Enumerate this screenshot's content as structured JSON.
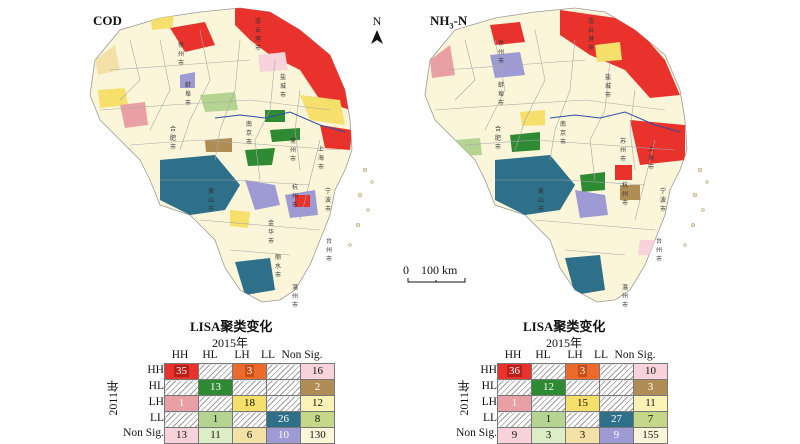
{
  "maps": [
    {
      "label": "COD",
      "cities": [
        "连云港市",
        "徐州市",
        "盐城市",
        "蚌埠市",
        "合肥市",
        "南京市",
        "常州市",
        "上海市",
        "黄山市",
        "杭州市",
        "金华市",
        "宁波市",
        "温州市",
        "台州市",
        "丽水市"
      ]
    },
    {
      "label": "NH3-N",
      "label_main": "NH",
      "label_sub": "3",
      "label_tail": "-N",
      "cities": [
        "连云港市",
        "徐州市",
        "盐城市",
        "蚌埠市",
        "合肥市",
        "南京市",
        "苏州市",
        "上海市",
        "黄山市",
        "杭州市",
        "宁波市",
        "温州市",
        "台州市"
      ]
    }
  ],
  "north_label": "N",
  "scale_label": "0    100 km",
  "legend_colors": {
    "HH": "#e8322b",
    "HL": "#2f8a34",
    "LH": "#f6df6a",
    "LL": "#2e6f8a",
    "NonSig": "#fbf6da",
    "HH_to_Non": "#f9d3dc",
    "HL_to_Non": "#b08d55",
    "LH_to_Non": "#fbf6da",
    "LL_to_Non": "#9e9ad3",
    "Non_to_HH": "#e8a0a4",
    "Non_to_HL": "#b5d391",
    "Non_to_LH": "#f3e1a8",
    "Non_to_LL": "#9e9ad3",
    "Non_to_Non": "#fbf6da"
  },
  "transition_tables": [
    {
      "title": "LISA聚类变化",
      "col_title": "2015年",
      "row_title": "2011年",
      "columns": [
        "HH",
        "HL",
        "LH",
        "LL",
        "Non Sig."
      ],
      "rows": [
        "HH",
        "HL",
        "LH",
        "LL",
        "Non Sig."
      ],
      "cells": [
        [
          "35",
          "",
          "3",
          "",
          "16"
        ],
        [
          "",
          "13",
          "",
          "",
          "2"
        ],
        [
          "1",
          "",
          "18",
          "",
          "12"
        ],
        [
          "",
          "1",
          "",
          "26",
          "8"
        ],
        [
          "13",
          "11",
          "6",
          "10",
          "130"
        ]
      ]
    },
    {
      "title": "LISA聚类变化",
      "col_title": "2015年",
      "row_title": "2011年",
      "columns": [
        "HH",
        "HL",
        "LH",
        "LL",
        "Non Sig."
      ],
      "rows": [
        "HH",
        "HL",
        "LH",
        "LL",
        "Non Sig."
      ],
      "cells": [
        [
          "36",
          "",
          "3",
          "",
          "10"
        ],
        [
          "",
          "12",
          "",
          "",
          "3"
        ],
        [
          "1",
          "",
          "15",
          "",
          "11"
        ],
        [
          "",
          "1",
          "",
          "27",
          "7"
        ],
        [
          "9",
          "3",
          "3",
          "9",
          "155"
        ]
      ]
    }
  ]
}
